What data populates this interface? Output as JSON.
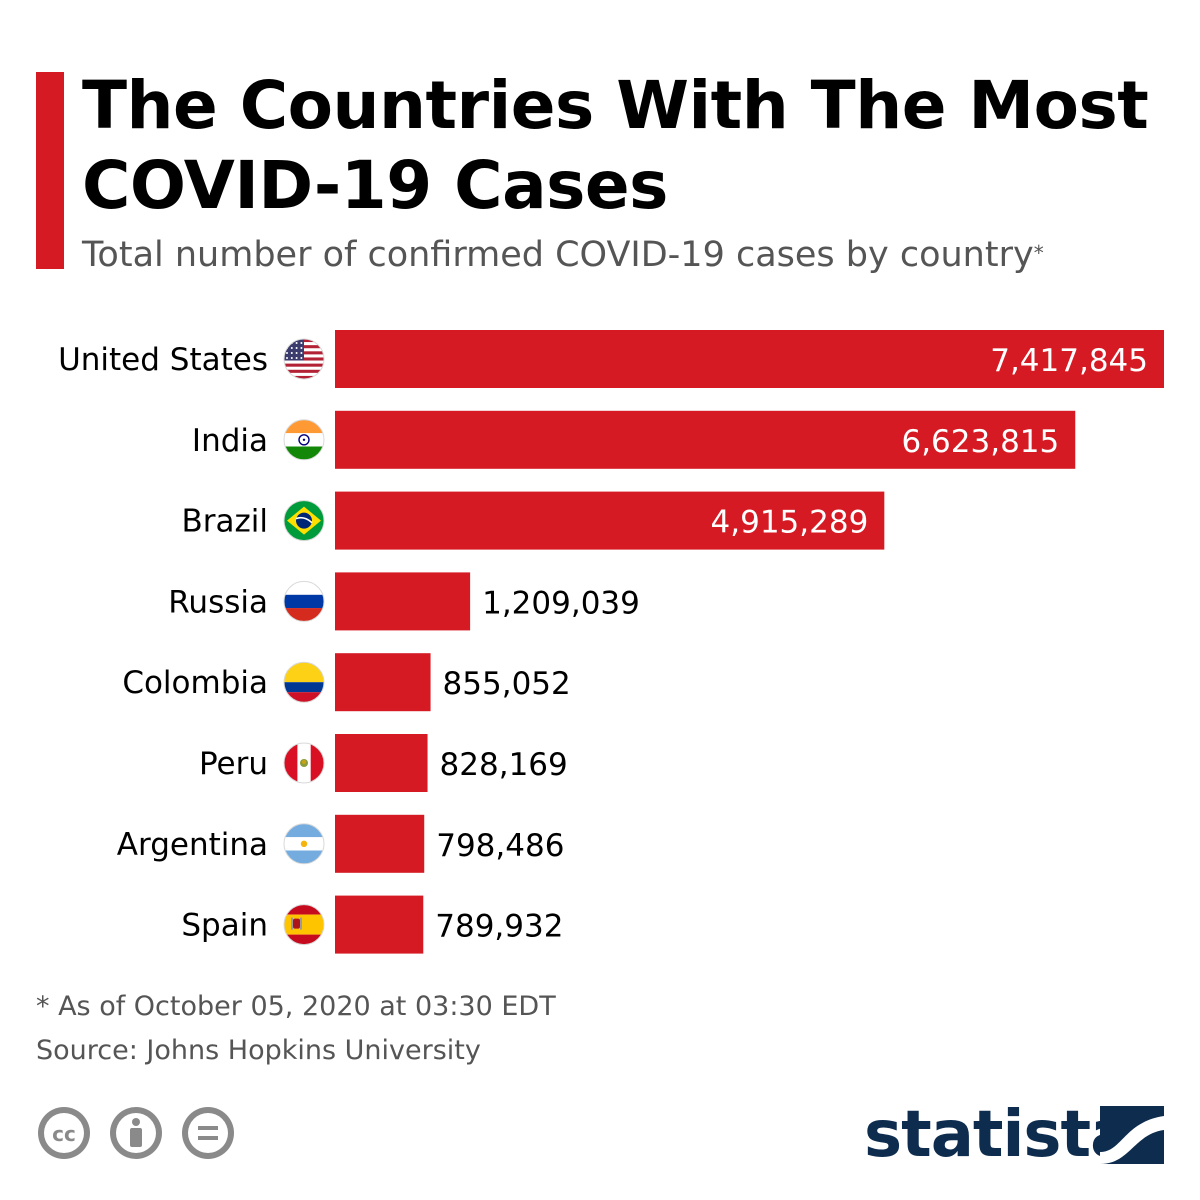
{
  "header": {
    "title": "The Countries With The Most COVID-19 Cases",
    "subtitle": "Total number of confirmed COVID-19 cases by country",
    "subtitle_mark": "*"
  },
  "chart_data": {
    "type": "bar",
    "orientation": "horizontal",
    "title": "The Countries With The Most COVID-19 Cases",
    "xlabel": "",
    "ylabel": "",
    "xlim": [
      0,
      7417845
    ],
    "grid": false,
    "legend": "none",
    "bar_color": "#d51a23",
    "categories": [
      "United States",
      "India",
      "Brazil",
      "Russia",
      "Colombia",
      "Peru",
      "Argentina",
      "Spain"
    ],
    "values": [
      7417845,
      6623815,
      4915289,
      1209039,
      855052,
      828169,
      798486,
      789932
    ],
    "value_labels": [
      "7,417,845",
      "6,623,815",
      "4,915,289",
      "1,209,039",
      "855,052",
      "828,169",
      "798,486",
      "789,932"
    ],
    "flags": [
      "us-flag-icon",
      "india-flag-icon",
      "brazil-flag-icon",
      "russia-flag-icon",
      "colombia-flag-icon",
      "peru-flag-icon",
      "argentina-flag-icon",
      "spain-flag-icon"
    ]
  },
  "footer": {
    "note": "* As of October 05, 2020 at 03:30 EDT",
    "source": "Source: Johns Hopkins University",
    "license_icons": [
      "cc-icon",
      "attribution-icon",
      "no-derivatives-icon"
    ],
    "logo": "statista"
  },
  "colors": {
    "accent": "#d51a23",
    "text": "#000000",
    "muted": "#555555",
    "brand": "#0d2c4e"
  }
}
